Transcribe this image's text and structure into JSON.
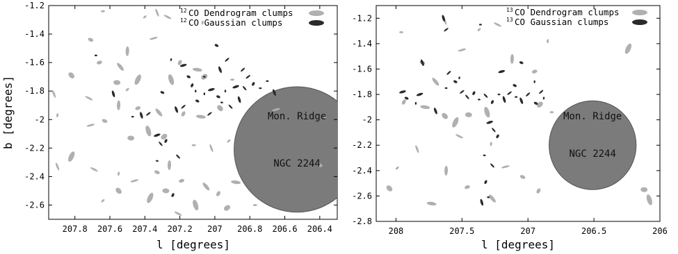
{
  "chart_data": [
    {
      "type": "scatter",
      "title": "",
      "xlabel": "l [degrees]",
      "ylabel": "b [degrees]",
      "xlim": [
        207.95,
        206.3
      ],
      "ylim": [
        -2.7,
        -1.2
      ],
      "x_ticks": [
        "207.8",
        "207.6",
        "207.4",
        "207.2",
        "207",
        "206.8",
        "206.6",
        "206.4"
      ],
      "y_ticks": [
        "-2.6",
        "-2.4",
        "-2.2",
        "-2",
        "-1.8",
        "-1.6",
        "-1.4",
        "-1.2"
      ],
      "legend": {
        "position": "top-right",
        "entries": [
          {
            "iso": "12",
            "text": "CO Dendrogram clumps",
            "color": "#b0b0b0"
          },
          {
            "iso": "12",
            "text": "CO Gaussian clumps",
            "color": "#2a2a2a"
          }
        ]
      },
      "region": {
        "l": 206.53,
        "b": -2.21,
        "r_l": 0.36,
        "r_b": 0.44,
        "color": "#7b7b7b",
        "labels": [
          "Mon. Ridge",
          "NGC 2244"
        ]
      },
      "series": [
        {
          "name": "12CO Dendrogram clumps",
          "points": [
            [
              207.64,
              -1.24
            ],
            [
              207.33,
              -1.25
            ],
            [
              207.4,
              -1.28
            ],
            [
              207.27,
              -1.28
            ],
            [
              207.07,
              -1.32
            ],
            [
              207.35,
              -1.43
            ],
            [
              207.71,
              -1.44
            ],
            [
              207.5,
              -1.52
            ],
            [
              207.66,
              -1.6
            ],
            [
              207.54,
              -1.63
            ],
            [
              207.2,
              -1.6
            ],
            [
              207.1,
              -1.65
            ],
            [
              207.82,
              -1.69
            ],
            [
              207.44,
              -1.72
            ],
            [
              207.56,
              -1.74
            ],
            [
              207.25,
              -1.72
            ],
            [
              207.06,
              -1.7
            ],
            [
              206.9,
              -1.72
            ],
            [
              207.92,
              -1.82
            ],
            [
              207.5,
              -1.79
            ],
            [
              207.72,
              -1.85
            ],
            [
              207.9,
              -1.97
            ],
            [
              207.71,
              -2.04
            ],
            [
              207.63,
              -2.01
            ],
            [
              207.55,
              -1.9
            ],
            [
              207.44,
              -1.92
            ],
            [
              207.32,
              -1.95
            ],
            [
              207.18,
              -1.96
            ],
            [
              207.08,
              -1.98
            ],
            [
              206.97,
              -1.92
            ],
            [
              207.82,
              -2.26
            ],
            [
              207.48,
              -2.13
            ],
            [
              207.38,
              -2.08
            ],
            [
              207.29,
              -2.12
            ],
            [
              207.12,
              -2.18
            ],
            [
              207.02,
              -2.2
            ],
            [
              206.92,
              -2.15
            ],
            [
              207.69,
              -2.35
            ],
            [
              207.55,
              -2.38
            ],
            [
              207.46,
              -2.43
            ],
            [
              207.33,
              -2.37
            ],
            [
              207.26,
              -2.32
            ],
            [
              207.19,
              -2.43
            ],
            [
              207.05,
              -2.47
            ],
            [
              206.98,
              -2.52
            ],
            [
              206.88,
              -2.44
            ],
            [
              207.55,
              -2.5
            ],
            [
              207.37,
              -2.55
            ],
            [
              207.28,
              -2.5
            ],
            [
              207.11,
              -2.6
            ],
            [
              206.93,
              -2.62
            ],
            [
              206.77,
              -2.6
            ],
            [
              207.9,
              -2.33
            ],
            [
              207.64,
              -2.57
            ],
            [
              207.21,
              -2.66
            ],
            [
              206.37,
              -1.98
            ],
            [
              206.65,
              -1.93
            ],
            [
              206.4,
              -2.32
            ]
          ]
        },
        {
          "name": "12CO Gaussian clumps",
          "points": [
            [
              207.42,
              -1.97
            ],
            [
              207.38,
              -1.96
            ],
            [
              207.47,
              -1.98
            ],
            [
              207.22,
              -1.93
            ],
            [
              207.18,
              -1.91
            ],
            [
              207.1,
              -1.87
            ],
            [
              207.06,
              -1.82
            ],
            [
              207.02,
              -1.79
            ],
            [
              206.98,
              -1.84
            ],
            [
              206.94,
              -1.8
            ],
            [
              206.88,
              -1.77
            ],
            [
              206.83,
              -1.78
            ],
            [
              206.78,
              -1.75
            ],
            [
              206.96,
              -1.88
            ],
            [
              206.91,
              -1.91
            ],
            [
              207.13,
              -1.76
            ],
            [
              207.06,
              -1.7
            ],
            [
              206.86,
              -1.86
            ],
            [
              206.81,
              -1.7
            ],
            [
              206.74,
              -1.78
            ],
            [
              206.97,
              -1.65
            ],
            [
              206.93,
              -1.58
            ],
            [
              206.99,
              -1.48
            ],
            [
              207.25,
              -1.58
            ],
            [
              207.18,
              -1.62
            ],
            [
              207.3,
              -1.81
            ],
            [
              207.11,
              -1.8
            ],
            [
              207.33,
              -2.11
            ],
            [
              207.31,
              -2.17
            ],
            [
              207.28,
              -2.15
            ],
            [
              207.33,
              -2.29
            ],
            [
              207.21,
              -2.26
            ],
            [
              207.24,
              -2.53
            ],
            [
              207.68,
              -1.55
            ],
            [
              207.58,
              -1.82
            ],
            [
              207.03,
              -1.96
            ],
            [
              206.7,
              -1.73
            ],
            [
              206.66,
              -1.81
            ],
            [
              206.84,
              -1.65
            ],
            [
              207.15,
              -1.7
            ]
          ]
        }
      ]
    },
    {
      "type": "scatter",
      "title": "",
      "xlabel": "l [degrees]",
      "ylabel": "",
      "xlim": [
        208.15,
        206.0
      ],
      "ylim": [
        -2.8,
        -1.1
      ],
      "x_ticks": [
        "208",
        "207.5",
        "207",
        "206.5",
        "206"
      ],
      "y_ticks": [
        "-2.8",
        "-2.6",
        "-2.4",
        "-2.2",
        "-2",
        "-1.8",
        "-1.6",
        "-1.4",
        "-1.2"
      ],
      "legend": {
        "position": "top-right",
        "entries": [
          {
            "iso": "13",
            "text": "CO Dendrogram clumps",
            "color": "#b0b0b0"
          },
          {
            "iso": "13",
            "text": "CO Gaussian clumps",
            "color": "#2a2a2a"
          }
        ]
      },
      "region": {
        "l": 206.51,
        "b": -2.2,
        "r_l": 0.33,
        "r_b": 0.35,
        "color": "#7b7b7b",
        "labels": [
          "Mon. Ridge",
          "NGC 2244"
        ]
      },
      "series": [
        {
          "name": "13CO Dendrogram clumps",
          "points": [
            [
              207.96,
              -1.31
            ],
            [
              207.63,
              -1.22
            ],
            [
              207.37,
              -1.29
            ],
            [
              207.23,
              -1.25
            ],
            [
              206.85,
              -1.38
            ],
            [
              207.5,
              -1.45
            ],
            [
              207.8,
              -1.55
            ],
            [
              207.12,
              -1.52
            ],
            [
              206.95,
              -1.62
            ],
            [
              207.7,
              -1.7
            ],
            [
              207.94,
              -1.86
            ],
            [
              207.78,
              -1.9
            ],
            [
              207.63,
              -1.97
            ],
            [
              207.55,
              -2.02
            ],
            [
              207.45,
              -1.96
            ],
            [
              207.31,
              -1.94
            ],
            [
              206.91,
              -1.88
            ],
            [
              206.82,
              -1.94
            ],
            [
              207.84,
              -2.23
            ],
            [
              207.99,
              -2.38
            ],
            [
              207.52,
              -2.13
            ],
            [
              207.28,
              -2.19
            ],
            [
              207.17,
              -2.37
            ],
            [
              207.04,
              -2.45
            ],
            [
              207.62,
              -2.4
            ],
            [
              207.46,
              -2.53
            ],
            [
              207.27,
              -2.62
            ],
            [
              206.92,
              -2.56
            ],
            [
              207.73,
              -2.66
            ],
            [
              208.05,
              -2.54
            ],
            [
              206.24,
              -1.44
            ],
            [
              206.12,
              -2.55
            ],
            [
              206.08,
              -2.63
            ]
          ]
        },
        {
          "name": "13CO Gaussian clumps",
          "points": [
            [
              207.64,
              -1.2
            ],
            [
              207.62,
              -1.29
            ],
            [
              207.36,
              -1.25
            ],
            [
              207.8,
              -1.55
            ],
            [
              207.6,
              -1.63
            ],
            [
              207.55,
              -1.7
            ],
            [
              207.52,
              -1.67
            ],
            [
              207.95,
              -1.78
            ],
            [
              207.92,
              -1.83
            ],
            [
              207.85,
              -1.87
            ],
            [
              207.82,
              -1.8
            ],
            [
              207.46,
              -1.82
            ],
            [
              207.41,
              -1.79
            ],
            [
              207.37,
              -1.84
            ],
            [
              207.32,
              -1.81
            ],
            [
              207.27,
              -1.86
            ],
            [
              207.22,
              -1.8
            ],
            [
              207.18,
              -1.84
            ],
            [
              207.14,
              -1.79
            ],
            [
              207.09,
              -1.82
            ],
            [
              207.05,
              -1.85
            ],
            [
              207.0,
              -1.8
            ],
            [
              206.94,
              -1.87
            ],
            [
              206.88,
              -1.83
            ],
            [
              207.2,
              -1.62
            ],
            [
              207.05,
              -1.55
            ],
            [
              206.95,
              -1.7
            ],
            [
              207.29,
              -2.02
            ],
            [
              207.26,
              -2.08
            ],
            [
              207.23,
              -2.13
            ],
            [
              207.33,
              -2.28
            ],
            [
              207.27,
              -2.36
            ],
            [
              207.32,
              -2.49
            ],
            [
              207.3,
              -2.61
            ],
            [
              207.35,
              -2.65
            ],
            [
              207.5,
              -1.78
            ],
            [
              207.62,
              -1.75
            ],
            [
              207.7,
              -1.93
            ],
            [
              206.9,
              -1.78
            ],
            [
              207.1,
              -1.73
            ]
          ]
        }
      ]
    }
  ]
}
